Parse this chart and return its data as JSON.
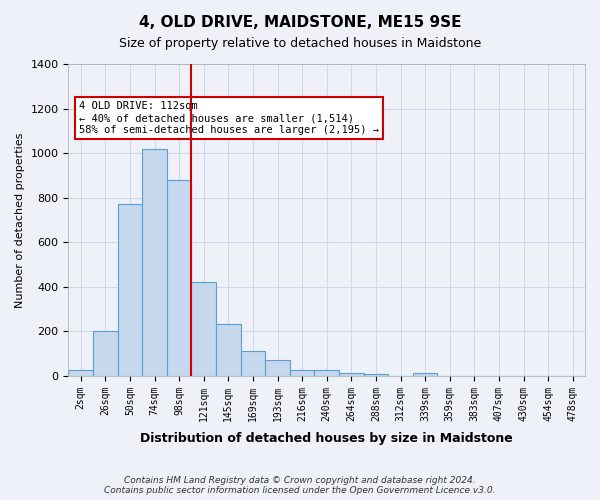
{
  "title": "4, OLD DRIVE, MAIDSTONE, ME15 9SE",
  "subtitle": "Size of property relative to detached houses in Maidstone",
  "xlabel": "Distribution of detached houses by size in Maidstone",
  "ylabel": "Number of detached properties",
  "footer_line1": "Contains HM Land Registry data © Crown copyright and database right 2024.",
  "footer_line2": "Contains public sector information licensed under the Open Government Licence v3.0.",
  "categories": [
    "2sqm",
    "26sqm",
    "50sqm",
    "74sqm",
    "98sqm",
    "121sqm",
    "145sqm",
    "169sqm",
    "193sqm",
    "216sqm",
    "240sqm",
    "264sqm",
    "288sqm",
    "312sqm",
    "339sqm",
    "359sqm",
    "383sqm",
    "407sqm",
    "430sqm",
    "454sqm",
    "478sqm"
  ],
  "bar_values": [
    25,
    200,
    770,
    1020,
    880,
    420,
    235,
    110,
    70,
    25,
    25,
    15,
    10,
    0,
    15,
    0,
    0,
    0,
    0,
    0,
    0
  ],
  "bar_color": "#c5d8ed",
  "bar_edge_color": "#5a9fd4",
  "vline_x": 4.5,
  "vline_color": "#cc0000",
  "annotation_text": "4 OLD DRIVE: 112sqm\n← 40% of detached houses are smaller (1,514)\n58% of semi-detached houses are larger (2,195) →",
  "annotation_box_color": "#ffffff",
  "annotation_box_edge_color": "#cc0000",
  "ylim": [
    0,
    1400
  ],
  "yticks": [
    0,
    200,
    400,
    600,
    800,
    1000,
    1200,
    1400
  ],
  "grid_color": "#d0d8e8",
  "background_color": "#eef2f8",
  "plot_bg_color": "#eef2f8"
}
